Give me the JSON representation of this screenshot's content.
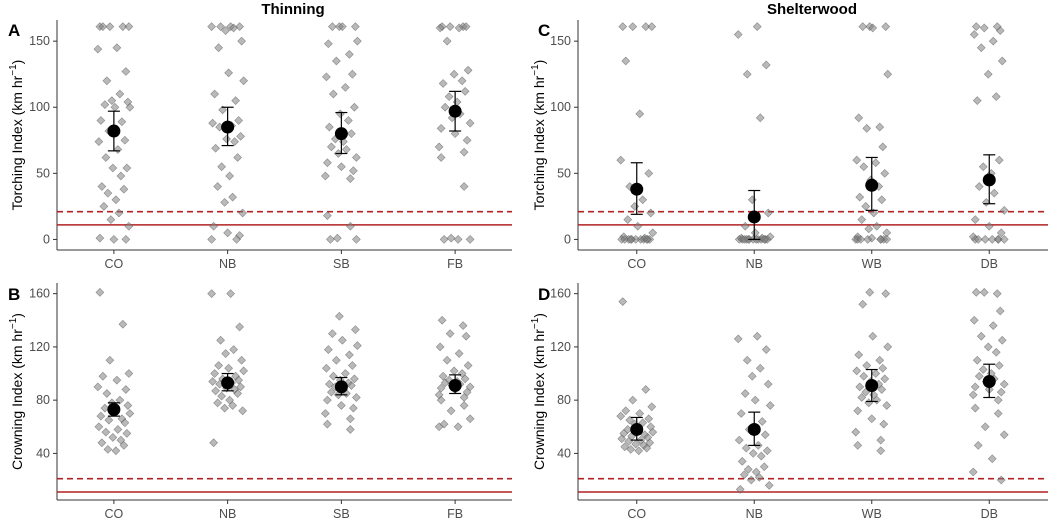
{
  "figure_titles": {
    "left": "Thinning",
    "right": "Shelterwood"
  },
  "reference_lines": {
    "solid": 11,
    "dashed": 21,
    "color": "#b22222"
  },
  "colors": {
    "points": "#808080",
    "mean": "#000000",
    "axis": "#333333"
  },
  "chart_data": [
    {
      "type": "scatter",
      "panel_label": "A",
      "title": "Thinning",
      "ylabel": "Torching Index (km hr",
      "ylabel_sup": "−1",
      "ylabel_tail": ")",
      "categories": [
        "CO",
        "NB",
        "SB",
        "FB"
      ],
      "ylim": [
        -8,
        166
      ],
      "yticks": [
        0,
        50,
        100,
        150
      ],
      "means": [
        82,
        85,
        80,
        97
      ],
      "ci_low": [
        67,
        71,
        65,
        82
      ],
      "ci_high": [
        97,
        100,
        96,
        112
      ],
      "points": [
        [
          161,
          161,
          161,
          161,
          161,
          145,
          144,
          127,
          120,
          110,
          105,
          104,
          102,
          100,
          100,
          90,
          89,
          82,
          75,
          74,
          68,
          62,
          54,
          54,
          48,
          40,
          38,
          35,
          30,
          25,
          20,
          15,
          10,
          1,
          0,
          0
        ],
        [
          161,
          161,
          161,
          161,
          160,
          158,
          150,
          145,
          126,
          120,
          110,
          105,
          98,
          90,
          88,
          86,
          85,
          78,
          76,
          74,
          69,
          62,
          55,
          48,
          40,
          32,
          28,
          20,
          10,
          5,
          3,
          0,
          0
        ],
        [
          161,
          161,
          161,
          161,
          150,
          148,
          140,
          135,
          125,
          123,
          115,
          110,
          100,
          95,
          90,
          85,
          80,
          76,
          74,
          70,
          68,
          65,
          62,
          58,
          55,
          52,
          48,
          46,
          18,
          10,
          1,
          0,
          0
        ],
        [
          161,
          161,
          161,
          161,
          160,
          160,
          150,
          128,
          125,
          120,
          118,
          112,
          108,
          104,
          100,
          95,
          92,
          88,
          84,
          80,
          75,
          70,
          66,
          62,
          40,
          1,
          0,
          0,
          0
        ]
      ]
    },
    {
      "type": "scatter",
      "panel_label": "B",
      "title": "",
      "ylabel": "Crowning Index (km hr",
      "ylabel_sup": "−1",
      "ylabel_tail": ")",
      "categories": [
        "CO",
        "NB",
        "SB",
        "FB"
      ],
      "ylim": [
        5,
        168
      ],
      "yticks": [
        40,
        80,
        120,
        160
      ],
      "means": [
        73,
        93,
        90,
        91
      ],
      "ci_low": [
        68,
        87,
        84,
        85
      ],
      "ci_high": [
        78,
        100,
        97,
        99
      ],
      "points": [
        [
          161,
          137,
          110,
          100,
          98,
          95,
          90,
          88,
          85,
          80,
          78,
          76,
          74,
          72,
          70,
          68,
          66,
          65,
          63,
          60,
          58,
          56,
          55,
          52,
          50,
          48,
          46,
          43,
          42
        ],
        [
          160,
          160,
          135,
          125,
          118,
          115,
          110,
          106,
          104,
          102,
          100,
          98,
          96,
          95,
          94,
          93,
          92,
          90,
          89,
          88,
          87,
          85,
          83,
          80,
          78,
          76,
          74,
          72,
          48
        ],
        [
          143,
          133,
          130,
          125,
          121,
          118,
          114,
          110,
          106,
          104,
          100,
          98,
          96,
          95,
          93,
          92,
          91,
          90,
          88,
          86,
          85,
          84,
          82,
          80,
          76,
          74,
          70,
          66,
          62,
          58
        ],
        [
          140,
          136,
          130,
          128,
          120,
          115,
          110,
          106,
          102,
          100,
          98,
          96,
          95,
          94,
          93,
          92,
          91,
          90,
          89,
          88,
          86,
          84,
          82,
          80,
          76,
          72,
          66,
          62,
          60,
          60
        ]
      ]
    },
    {
      "type": "scatter",
      "panel_label": "C",
      "title": "Shelterwood",
      "ylabel": "Torching Index (km hr",
      "ylabel_sup": "−1",
      "ylabel_tail": ")",
      "categories": [
        "CO",
        "NB",
        "WB",
        "DB"
      ],
      "ylim": [
        -8,
        166
      ],
      "yticks": [
        0,
        50,
        100,
        150
      ],
      "means": [
        38,
        17,
        41,
        45
      ],
      "ci_low": [
        19,
        0,
        22,
        27
      ],
      "ci_high": [
        58,
        37,
        62,
        64
      ],
      "points": [
        [
          161,
          161,
          161,
          161,
          135,
          95,
          60,
          50,
          40,
          30,
          25,
          20,
          15,
          10,
          5,
          2,
          1,
          0,
          0,
          0,
          0,
          0,
          0,
          0,
          0,
          0,
          0,
          0
        ],
        [
          161,
          155,
          132,
          125,
          92,
          30,
          20,
          10,
          5,
          2,
          1,
          1,
          0,
          0,
          0,
          0,
          0,
          0,
          0,
          0,
          0,
          0,
          0,
          0,
          0
        ],
        [
          161,
          161,
          161,
          160,
          125,
          92,
          85,
          84,
          70,
          60,
          58,
          55,
          50,
          45,
          40,
          32,
          30,
          25,
          20,
          15,
          10,
          8,
          5,
          2,
          1,
          0,
          0,
          0,
          0,
          0,
          0,
          0,
          0
        ],
        [
          161,
          161,
          160,
          158,
          155,
          150,
          145,
          135,
          125,
          108,
          105,
          60,
          55,
          50,
          40,
          35,
          28,
          22,
          15,
          10,
          5,
          2,
          0,
          0,
          0,
          0,
          0,
          0,
          0
        ]
      ]
    },
    {
      "type": "scatter",
      "panel_label": "D",
      "title": "",
      "ylabel": "Crowning Index (km hr",
      "ylabel_sup": "−1",
      "ylabel_tail": ")",
      "categories": [
        "CO",
        "NB",
        "WB",
        "DB"
      ],
      "ylim": [
        5,
        168
      ],
      "yticks": [
        40,
        80,
        120,
        160
      ],
      "means": [
        58,
        58,
        91,
        94
      ],
      "ci_low": [
        50,
        46,
        79,
        82
      ],
      "ci_high": [
        67,
        71,
        103,
        107
      ],
      "points": [
        [
          154,
          88,
          80,
          75,
          72,
          70,
          68,
          66,
          65,
          63,
          62,
          60,
          58,
          57,
          56,
          55,
          54,
          53,
          52,
          51,
          50,
          49,
          48,
          47,
          46,
          45,
          44,
          43,
          42
        ],
        [
          128,
          126,
          118,
          110,
          104,
          98,
          92,
          85,
          80,
          76,
          70,
          64,
          58,
          54,
          50,
          46,
          44,
          42,
          40,
          38,
          34,
          30,
          28,
          26,
          24,
          22,
          20,
          16,
          13
        ],
        [
          161,
          160,
          152,
          128,
          120,
          114,
          110,
          106,
          104,
          102,
          100,
          98,
          96,
          94,
          92,
          90,
          88,
          86,
          84,
          82,
          80,
          78,
          76,
          72,
          66,
          62,
          56,
          50,
          46,
          42
        ],
        [
          161,
          160,
          161,
          147,
          140,
          136,
          128,
          125,
          120,
          116,
          110,
          106,
          103,
          100,
          98,
          96,
          94,
          92,
          90,
          88,
          86,
          84,
          80,
          74,
          70,
          60,
          54,
          46,
          36,
          26,
          20
        ]
      ]
    }
  ]
}
